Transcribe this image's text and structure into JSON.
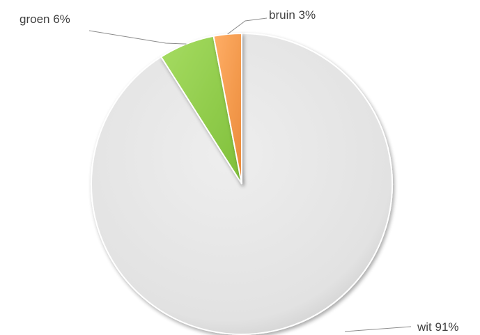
{
  "chart_data": {
    "type": "pie",
    "slices": [
      {
        "category": "wit",
        "value": 91,
        "label": "wit 91%",
        "color": "#e6e6e6"
      },
      {
        "category": "groen",
        "value": 6,
        "label": "groen 6%",
        "color": "#92d050"
      },
      {
        "category": "bruin",
        "value": 3,
        "label": "bruin 3%",
        "color": "#f79646"
      }
    ],
    "title": "",
    "legend": "none"
  }
}
